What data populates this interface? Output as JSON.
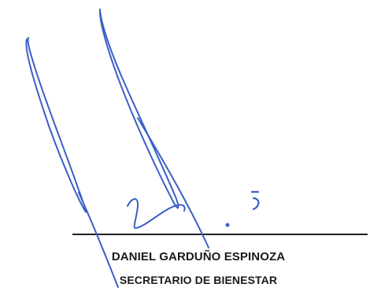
{
  "signatory": {
    "name": "DANIEL GARDUÑO ESPINOZA",
    "title": "SECRETARIO DE BIENESTAR"
  },
  "colors": {
    "ink": "#3a5fc8",
    "text": "#1a1a1a",
    "line": "#222222"
  }
}
